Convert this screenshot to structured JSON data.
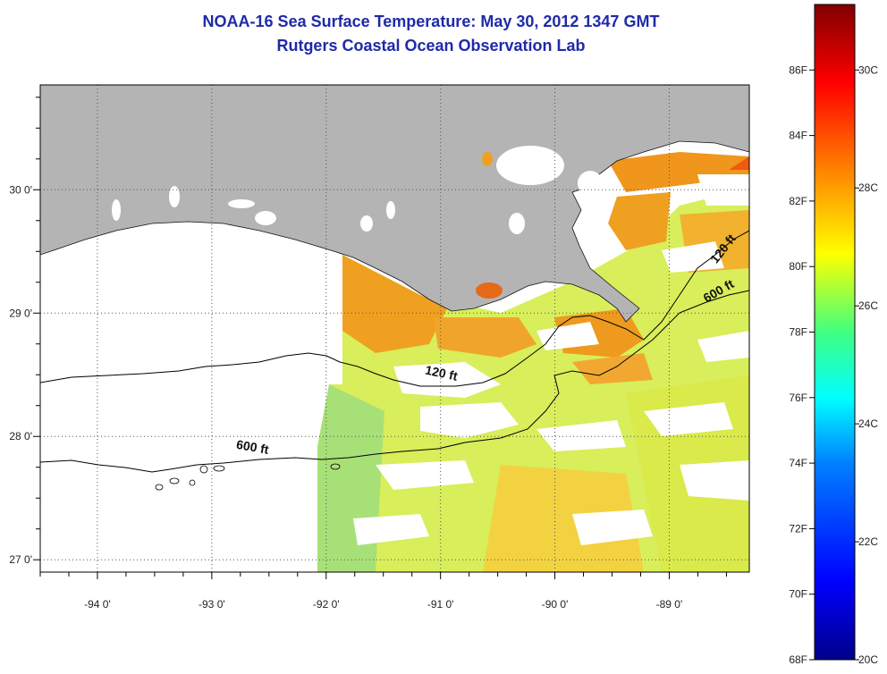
{
  "title": "NOAA-16 Sea Surface Temperature:  May 30, 2012 1347 GMT",
  "subtitle": "Rutgers Coastal Ocean Observation Lab",
  "map": {
    "lon_range": [
      -94.5,
      -88.3
    ],
    "lat_range": [
      26.9,
      30.85
    ],
    "lon_ticks": [
      {
        "value": -94,
        "label": "-94 0'"
      },
      {
        "value": -93,
        "label": "-93 0'"
      },
      {
        "value": -92,
        "label": "-92 0'"
      },
      {
        "value": -91,
        "label": "-91 0'"
      },
      {
        "value": -90,
        "label": "-90 0'"
      },
      {
        "value": -89,
        "label": "-89 0'"
      }
    ],
    "lat_ticks": [
      {
        "value": 30,
        "label": "30 0'"
      },
      {
        "value": 29,
        "label": "29 0'"
      },
      {
        "value": 28,
        "label": "28 0'"
      },
      {
        "value": 27,
        "label": "27 0'"
      }
    ],
    "grid": true,
    "land_color": "#b4b4b4",
    "contour_labels": [
      {
        "text": "120 ft",
        "lon": -91.0,
        "lat": 28.48,
        "angle": 12
      },
      {
        "text": "600 ft",
        "lon": -92.65,
        "lat": 27.88,
        "angle": 10
      },
      {
        "text": "120 ft",
        "lon": -88.5,
        "lat": 29.5,
        "angle": -52
      },
      {
        "text": "600 ft",
        "lon": -88.55,
        "lat": 29.15,
        "angle": -30
      }
    ]
  },
  "colorbar": {
    "range_f": [
      68,
      88
    ],
    "fahrenheit_labels": [
      {
        "value": 86,
        "label": "86F"
      },
      {
        "value": 84,
        "label": "84F"
      },
      {
        "value": 82,
        "label": "82F"
      },
      {
        "value": 80,
        "label": "80F"
      },
      {
        "value": 78,
        "label": "78F"
      },
      {
        "value": 76,
        "label": "76F"
      },
      {
        "value": 74,
        "label": "74F"
      },
      {
        "value": 72,
        "label": "72F"
      },
      {
        "value": 70,
        "label": "70F"
      },
      {
        "value": 68,
        "label": "68F"
      }
    ],
    "celsius_labels": [
      {
        "value": 30,
        "label": "30C"
      },
      {
        "value": 28,
        "label": "28C"
      },
      {
        "value": 26,
        "label": "26C"
      },
      {
        "value": 24,
        "label": "24C"
      },
      {
        "value": 22,
        "label": "22C"
      },
      {
        "value": 20,
        "label": "20C"
      }
    ],
    "colors": [
      "#00008a",
      "#0000ff",
      "#0080ff",
      "#00ffff",
      "#40ff80",
      "#ffff00",
      "#ff8000",
      "#ff0000",
      "#800000"
    ]
  }
}
